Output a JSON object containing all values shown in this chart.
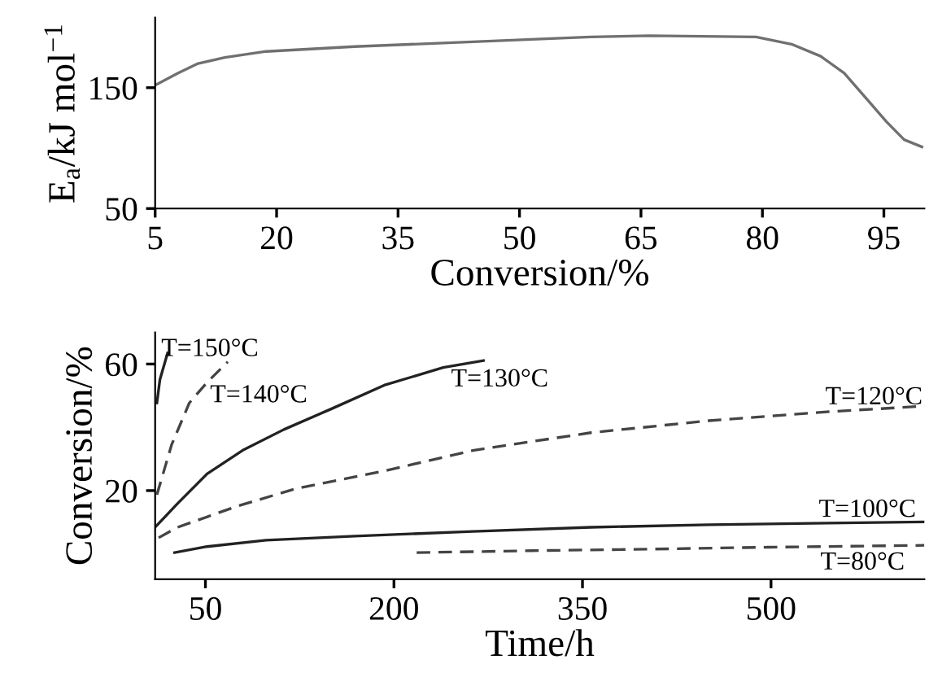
{
  "chart_data": [
    {
      "type": "line",
      "xlabel": "Conversion/%",
      "ylabel": "E$_{a}$/kJ mol$^{−1}$",
      "xlim": [
        5,
        100
      ],
      "xticks": [
        5,
        20,
        35,
        50,
        65,
        80,
        95
      ],
      "ylim": [
        50,
        208
      ],
      "yticks": [
        50,
        150
      ],
      "grid": false,
      "legend": false,
      "series": [
        {
          "color": "#707070",
          "line_style": "solid",
          "x": [
            5,
            7.8,
            10.3,
            13.6,
            18.7,
            29.6,
            44.2,
            58.8,
            66,
            79.2,
            83.6,
            87.2,
            90.1,
            93.1,
            95.3,
            97.5,
            99.7
          ],
          "values": [
            152,
            162,
            170,
            175,
            180,
            184,
            188,
            192,
            193,
            192,
            186,
            176,
            162,
            139,
            122,
            107,
            101
          ]
        }
      ]
    },
    {
      "type": "line",
      "xlabel": "Time/h",
      "ylabel": "Conversion/%",
      "xlim": [
        10,
        622
      ],
      "xticks": [
        50,
        200,
        350,
        500
      ],
      "ylim": [
        -8,
        70
      ],
      "yticks": [
        20,
        60
      ],
      "grid": false,
      "legend": false,
      "series": [
        {
          "name": "T=150°C",
          "color": "#222222",
          "line_style": "solid",
          "x": [
            11.4,
            13.8,
            19.9
          ],
          "values": [
            47.7,
            55.1,
            63.5
          ]
        },
        {
          "name": "T=140°C",
          "color": "#444444",
          "line_style": "dashed",
          "x": [
            11.4,
            23.2,
            37.2,
            51.3,
            67.8
          ],
          "values": [
            18.7,
            34.6,
            47.7,
            54.2,
            60.7
          ]
        },
        {
          "name": "T=130°C",
          "color": "#222222",
          "line_style": "solid",
          "x": [
            10,
            27.8,
            51.3,
            79.5,
            112.4,
            150,
            192.2,
            239.2,
            271.2
          ],
          "values": [
            8.4,
            15.9,
            25.3,
            32.7,
            39.3,
            45.8,
            53.3,
            58.9,
            61.1
          ]
        },
        {
          "name": "T=120°C",
          "color": "#444444",
          "line_style": "dashed",
          "x": [
            12.8,
            27.8,
            74.8,
            121.8,
            192.2,
            262.7,
            356.6,
            450.6,
            544.5,
            622
          ],
          "values": [
            5.1,
            8.4,
            15,
            20.6,
            26.2,
            32.7,
            38.3,
            42.1,
            44.9,
            46.7
          ]
        },
        {
          "name": "T=100°C",
          "color": "#222222",
          "line_style": "solid",
          "x": [
            25.5,
            51.3,
            98.3,
            168.8,
            262.7,
            356.6,
            450.6,
            544.5,
            622
          ],
          "values": [
            0.4,
            2.3,
            4.3,
            5.6,
            7.1,
            8.4,
            9.2,
            9.7,
            10.1
          ]
        },
        {
          "name": "T=80°C",
          "color": "#444444",
          "line_style": "dashed",
          "x": [
            218.1,
            309.7,
            403.6,
            497.6,
            622
          ],
          "values": [
            0.4,
            1,
            1.5,
            2.1,
            2.7
          ]
        }
      ]
    }
  ]
}
